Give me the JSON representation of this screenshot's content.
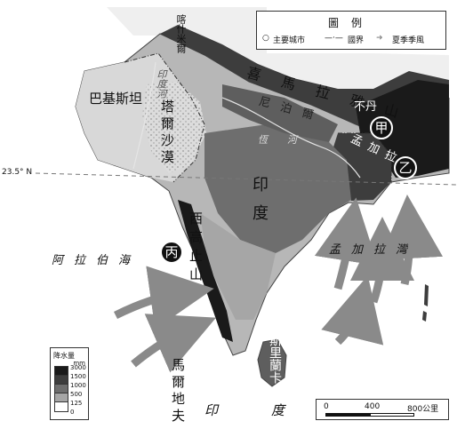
{
  "legend": {
    "title": "圖例",
    "city": "主要城市",
    "border": "國界",
    "monsoon": "夏季季風"
  },
  "rain_legend": {
    "title": "降水量",
    "unit": "mm",
    "levels": [
      "3000",
      "1500",
      "1000",
      "500",
      "125",
      "0"
    ]
  },
  "scale": {
    "ticks": [
      "0",
      "400",
      "800公里"
    ]
  },
  "latitude_label": "23.5° N",
  "places": {
    "kashmir": "喀什米爾",
    "himalaya": "喜馬拉雅山",
    "nepal": "尼泊爾",
    "bhutan": "不丹",
    "bangladesh": "孟加拉",
    "pakistan": "巴基斯坦",
    "indus": "印度河",
    "thar": "塔爾沙漠",
    "ganges": "恆河",
    "india": "印度",
    "western_ghats": "西高止山",
    "arabian_sea": "阿拉伯海",
    "bay_of_bengal": "孟加拉灣",
    "sri_lanka": "斯里蘭卡",
    "maldives": "馬爾地夫",
    "indian_ocean": "印度洋"
  },
  "markers": {
    "jia": "甲",
    "yi": "乙",
    "bing": "丙"
  },
  "colors": {
    "very_dark": "#1a1a1a",
    "dark": "#3d3d3d",
    "mid_dark": "#5e5e5e",
    "mid": "#8a8a8a",
    "light": "#b7b7b7",
    "very_light": "#e6e6e6"
  }
}
